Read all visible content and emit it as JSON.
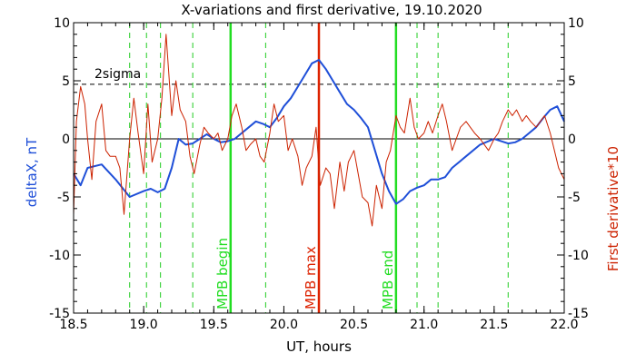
{
  "chart_data": {
    "type": "line",
    "title": "X-variations and first derivative, 19.10.2020",
    "xlabel": "UT, hours",
    "ylabel_left": "deltaX, nT",
    "ylabel_right": "First derivative*10",
    "xlim": [
      18.5,
      22.0
    ],
    "ylim": [
      -15,
      10
    ],
    "xticks": [
      "18.5",
      "19.0",
      "19.5",
      "20.0",
      "20.5",
      "21.0",
      "21.5",
      "22.0"
    ],
    "xtick_values": [
      18.5,
      19.0,
      19.5,
      20.0,
      20.5,
      21.0,
      21.5,
      22.0
    ],
    "yticks_left": [
      "-15",
      "-10",
      "-5",
      "0",
      "5",
      "10"
    ],
    "yticks_right": [
      "-15",
      "-10",
      "-5",
      "0",
      "5",
      "10"
    ],
    "ytick_values": [
      -15,
      -10,
      -5,
      0,
      5,
      10
    ],
    "colors": {
      "deltaX": "#1f4fd8",
      "derivative": "#cc2200",
      "mpb": "#22dd22",
      "mpb_max": "#dd2200",
      "reference": "#000000",
      "dashed_green": "#22cc22"
    },
    "sigma_line": {
      "label": "2sigma",
      "value": 4.7
    },
    "zero_line": 0,
    "vertical_markers": [
      {
        "label": "MPB begin",
        "x": 19.62,
        "color": "#22dd22"
      },
      {
        "label": "MPB max",
        "x": 20.25,
        "color": "#dd2200"
      },
      {
        "label": "MPB end",
        "x": 20.8,
        "color": "#22dd22"
      }
    ],
    "dashed_verticals": [
      18.9,
      19.02,
      19.12,
      19.35,
      19.87,
      20.95,
      21.1,
      21.6
    ],
    "series": [
      {
        "name": "deltaX, nT",
        "color": "#1f4fd8",
        "x": [
          18.5,
          18.55,
          18.6,
          18.7,
          18.8,
          18.9,
          19.0,
          19.05,
          19.1,
          19.15,
          19.2,
          19.25,
          19.3,
          19.35,
          19.4,
          19.45,
          19.5,
          19.55,
          19.6,
          19.65,
          19.7,
          19.75,
          19.8,
          19.85,
          19.9,
          19.95,
          20.0,
          20.05,
          20.1,
          20.15,
          20.2,
          20.25,
          20.3,
          20.35,
          20.4,
          20.45,
          20.5,
          20.55,
          20.6,
          20.65,
          20.7,
          20.75,
          20.8,
          20.85,
          20.9,
          20.95,
          21.0,
          21.05,
          21.1,
          21.15,
          21.2,
          21.3,
          21.4,
          21.5,
          21.55,
          21.6,
          21.65,
          21.7,
          21.75,
          21.8,
          21.85,
          21.9,
          21.95,
          22.0
        ],
        "values": [
          -3.0,
          -4.0,
          -2.5,
          -2.2,
          -3.5,
          -5.0,
          -4.5,
          -4.3,
          -4.6,
          -4.3,
          -2.5,
          0.0,
          -0.5,
          -0.4,
          0.0,
          0.4,
          0.0,
          -0.3,
          -0.2,
          0.0,
          0.5,
          1.0,
          1.5,
          1.3,
          1.0,
          1.8,
          2.8,
          3.5,
          4.5,
          5.5,
          6.5,
          6.8,
          6.0,
          5.0,
          4.0,
          3.0,
          2.5,
          1.8,
          1.0,
          -1.0,
          -3.0,
          -4.5,
          -5.6,
          -5.2,
          -4.5,
          -4.2,
          -4.0,
          -3.5,
          -3.5,
          -3.3,
          -2.5,
          -1.5,
          -0.5,
          0.0,
          -0.2,
          -0.4,
          -0.3,
          0.0,
          0.5,
          1.0,
          1.8,
          2.5,
          2.8,
          1.5
        ]
      },
      {
        "name": "First derivative*10",
        "color": "#cc2200",
        "x": [
          18.5,
          18.52,
          18.55,
          18.58,
          18.6,
          18.63,
          18.66,
          18.7,
          18.73,
          18.76,
          18.8,
          18.83,
          18.86,
          18.9,
          18.93,
          18.96,
          19.0,
          19.03,
          19.06,
          19.1,
          19.13,
          19.16,
          19.2,
          19.23,
          19.26,
          19.3,
          19.33,
          19.36,
          19.4,
          19.43,
          19.46,
          19.5,
          19.53,
          19.56,
          19.6,
          19.63,
          19.66,
          19.7,
          19.73,
          19.76,
          19.8,
          19.83,
          19.86,
          19.9,
          19.93,
          19.96,
          20.0,
          20.03,
          20.06,
          20.1,
          20.13,
          20.16,
          20.2,
          20.23,
          20.26,
          20.3,
          20.33,
          20.36,
          20.4,
          20.43,
          20.46,
          20.5,
          20.53,
          20.56,
          20.6,
          20.63,
          20.66,
          20.7,
          20.73,
          20.76,
          20.8,
          20.83,
          20.86,
          20.9,
          20.93,
          20.96,
          21.0,
          21.03,
          21.06,
          21.1,
          21.13,
          21.16,
          21.2,
          21.23,
          21.26,
          21.3,
          21.33,
          21.36,
          21.4,
          21.43,
          21.46,
          21.5,
          21.53,
          21.56,
          21.6,
          21.63,
          21.66,
          21.7,
          21.73,
          21.76,
          21.8,
          21.83,
          21.86,
          21.9,
          21.93,
          21.96,
          22.0
        ],
        "values": [
          -6.5,
          1.5,
          4.5,
          3.0,
          0.0,
          -3.5,
          1.5,
          3.0,
          -1.0,
          -1.5,
          -1.5,
          -2.5,
          -6.5,
          0.0,
          3.5,
          0.5,
          -3.0,
          3.0,
          -2.0,
          0.0,
          3.5,
          9.0,
          2.0,
          5.0,
          2.5,
          1.5,
          -1.5,
          -3.0,
          -0.5,
          1.0,
          0.5,
          0.0,
          0.5,
          -1.0,
          0.0,
          2.0,
          3.0,
          1.0,
          -1.0,
          -0.5,
          0.0,
          -1.5,
          -2.0,
          0.5,
          3.0,
          1.5,
          2.0,
          -1.0,
          0.0,
          -1.5,
          -4.0,
          -2.5,
          -1.5,
          1.0,
          -4.0,
          -2.5,
          -3.0,
          -6.0,
          -2.0,
          -4.5,
          -2.0,
          -1.0,
          -3.0,
          -5.0,
          -5.5,
          -7.5,
          -4.0,
          -6.0,
          -2.0,
          -1.0,
          2.0,
          1.0,
          0.5,
          3.5,
          1.0,
          0.0,
          0.5,
          1.5,
          0.5,
          2.0,
          3.0,
          1.5,
          -1.0,
          0.0,
          1.0,
          1.5,
          1.0,
          0.5,
          0.0,
          -0.5,
          -1.0,
          0.0,
          0.5,
          1.5,
          2.5,
          2.0,
          2.5,
          1.5,
          2.0,
          1.5,
          1.0,
          1.5,
          2.0,
          0.5,
          -1.0,
          -2.5,
          -3.5
        ]
      }
    ]
  }
}
